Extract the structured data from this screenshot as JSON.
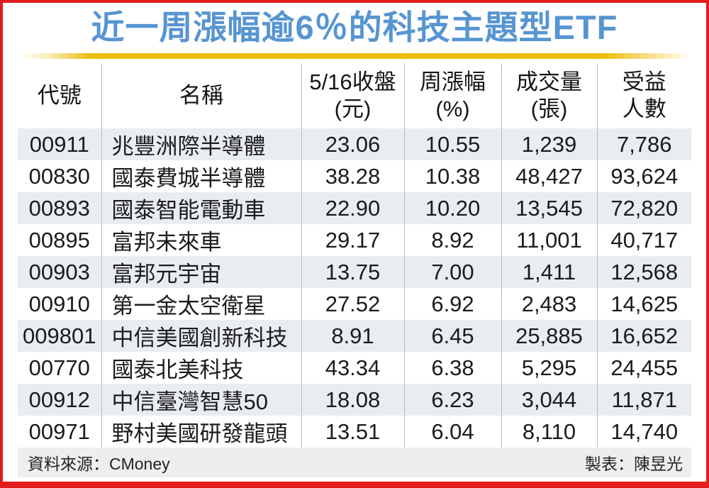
{
  "title": "近一周漲幅逾6％的科技主題型ETF",
  "table": {
    "columns": [
      {
        "label": "代號",
        "sub": ""
      },
      {
        "label": "名稱",
        "sub": ""
      },
      {
        "label": "5/16收盤",
        "sub": "(元)"
      },
      {
        "label": "周漲幅",
        "sub": "(%)"
      },
      {
        "label": "成交量",
        "sub": "(張)"
      },
      {
        "label": "受益",
        "sub": "人數"
      }
    ],
    "rows": [
      [
        "00911",
        "兆豐洲際半導體",
        "23.06",
        "10.55",
        "1,239",
        "7,786"
      ],
      [
        "00830",
        "國泰費城半導體",
        "38.28",
        "10.38",
        "48,427",
        "93,624"
      ],
      [
        "00893",
        "國泰智能電動車",
        "22.90",
        "10.20",
        "13,545",
        "72,820"
      ],
      [
        "00895",
        "富邦未來車",
        "29.17",
        "8.92",
        "11,001",
        "40,717"
      ],
      [
        "00903",
        "富邦元宇宙",
        "13.75",
        "7.00",
        "1,411",
        "12,568"
      ],
      [
        "00910",
        "第一金太空衛星",
        "27.52",
        "6.92",
        "2,483",
        "14,625"
      ],
      [
        "009801",
        "中信美國創新科技",
        "8.91",
        "6.45",
        "25,885",
        "16,652"
      ],
      [
        "00770",
        "國泰北美科技",
        "43.34",
        "6.38",
        "5,295",
        "24,455"
      ],
      [
        "00912",
        "中信臺灣智慧50",
        "18.08",
        "6.23",
        "3,044",
        "11,871"
      ],
      [
        "00971",
        "野村美國研發龍頭",
        "13.51",
        "6.04",
        "8,110",
        "14,740"
      ]
    ]
  },
  "footer": {
    "source": "資料來源：CMoney",
    "credit": "製表：陳昱光"
  },
  "colors": {
    "frame_border": "#e11d1d",
    "title_text": "#5795d2",
    "accent_bar": "#e9bd0b",
    "row_shade": "#e9edf1",
    "footer_bg": "#eceef0",
    "divider": "#b7babd"
  },
  "chart_data": {
    "type": "table",
    "title": "近一周漲幅逾6％的科技主題型ETF",
    "columns": [
      "代號",
      "名稱",
      "5/16收盤(元)",
      "周漲幅(%)",
      "成交量(張)",
      "受益人數"
    ],
    "rows": [
      {
        "code": "00911",
        "name": "兆豐洲際半導體",
        "close_516": 23.06,
        "weekly_change_pct": 10.55,
        "volume_lots": 1239,
        "beneficiaries": 7786
      },
      {
        "code": "00830",
        "name": "國泰費城半導體",
        "close_516": 38.28,
        "weekly_change_pct": 10.38,
        "volume_lots": 48427,
        "beneficiaries": 93624
      },
      {
        "code": "00893",
        "name": "國泰智能電動車",
        "close_516": 22.9,
        "weekly_change_pct": 10.2,
        "volume_lots": 13545,
        "beneficiaries": 72820
      },
      {
        "code": "00895",
        "name": "富邦未來車",
        "close_516": 29.17,
        "weekly_change_pct": 8.92,
        "volume_lots": 11001,
        "beneficiaries": 40717
      },
      {
        "code": "00903",
        "name": "富邦元宇宙",
        "close_516": 13.75,
        "weekly_change_pct": 7.0,
        "volume_lots": 1411,
        "beneficiaries": 12568
      },
      {
        "code": "00910",
        "name": "第一金太空衛星",
        "close_516": 27.52,
        "weekly_change_pct": 6.92,
        "volume_lots": 2483,
        "beneficiaries": 14625
      },
      {
        "code": "009801",
        "name": "中信美國創新科技",
        "close_516": 8.91,
        "weekly_change_pct": 6.45,
        "volume_lots": 25885,
        "beneficiaries": 16652
      },
      {
        "code": "00770",
        "name": "國泰北美科技",
        "close_516": 43.34,
        "weekly_change_pct": 6.38,
        "volume_lots": 5295,
        "beneficiaries": 24455
      },
      {
        "code": "00912",
        "name": "中信臺灣智慧50",
        "close_516": 18.08,
        "weekly_change_pct": 6.23,
        "volume_lots": 3044,
        "beneficiaries": 11871
      },
      {
        "code": "00971",
        "name": "野村美國研發龍頭",
        "close_516": 13.51,
        "weekly_change_pct": 6.04,
        "volume_lots": 8110,
        "beneficiaries": 14740
      }
    ],
    "source": "CMoney",
    "credit": "陳昱光"
  }
}
